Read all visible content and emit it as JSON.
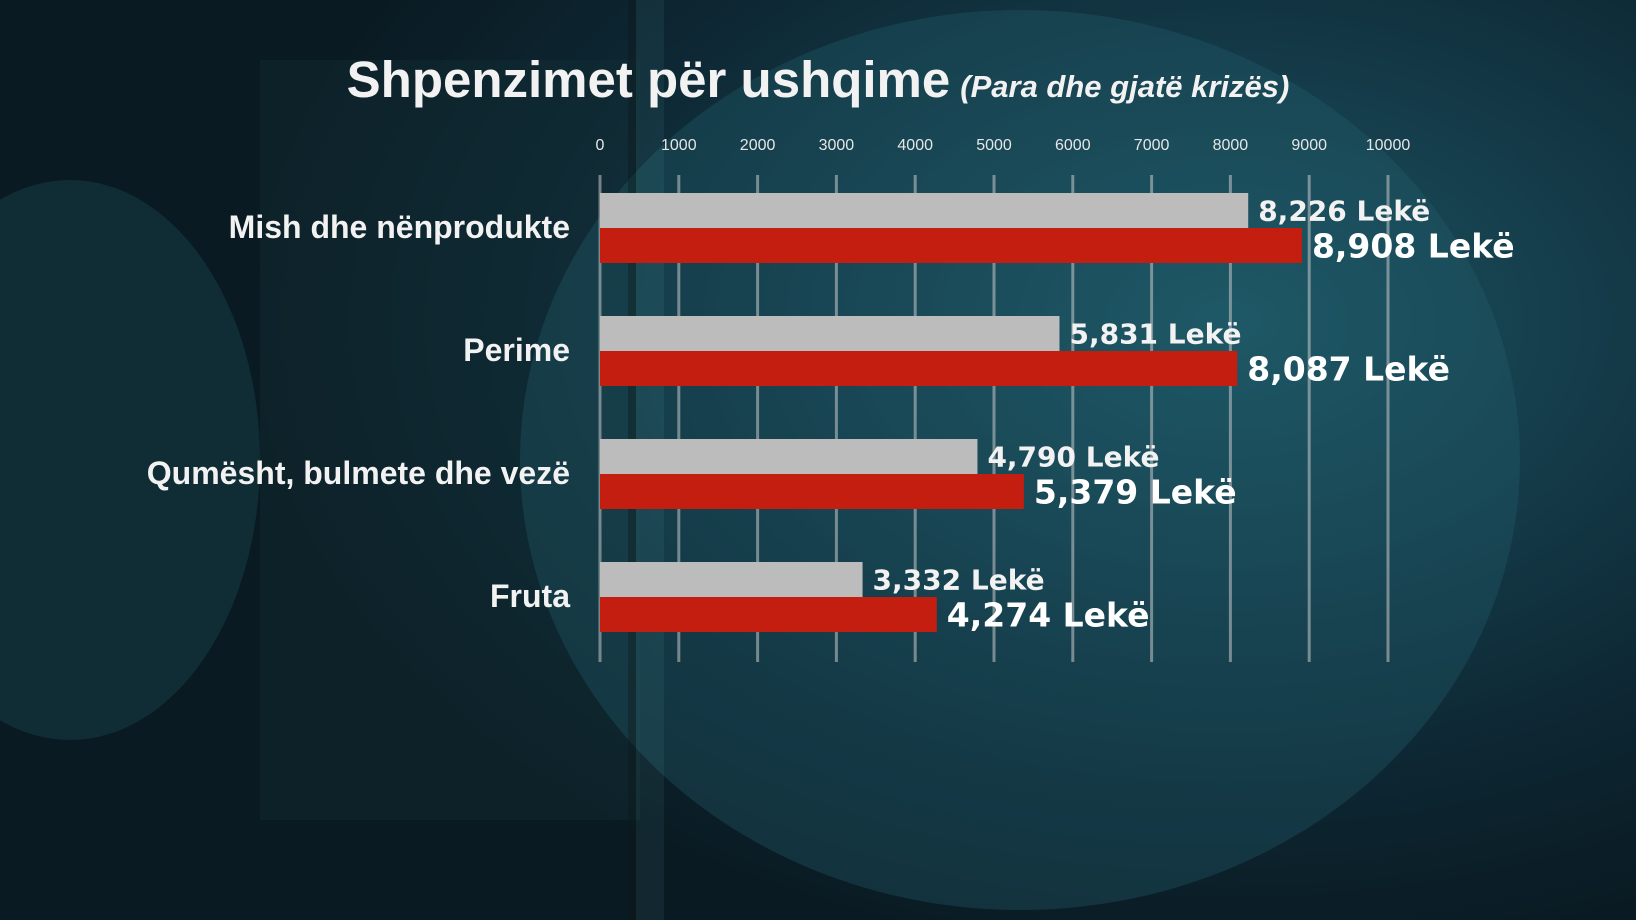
{
  "title": {
    "main": "Shpenzimet për ushqime",
    "sub": "(Para dhe gjatë krizës)"
  },
  "chart_data": {
    "type": "bar",
    "orientation": "horizontal",
    "title": "Shpenzimet për ushqime",
    "subtitle": "(Para dhe gjatë krizës)",
    "categories": [
      "Mish dhe nënprodukte",
      "Perime",
      "Qumësht, bulmete dhe vezë",
      "Fruta"
    ],
    "series": [
      {
        "color": "#bcbcbc",
        "values": [
          8226,
          5831,
          4790,
          3332
        ],
        "value_labels": [
          "8,226 Lekë",
          "5,831 Lekë",
          "4,790 Lekë",
          "3,332 Lekë"
        ]
      },
      {
        "color": "#c41e10",
        "values": [
          8908,
          8087,
          5379,
          4274
        ],
        "value_labels": [
          "8,908 Lekë",
          "8,087 Lekë",
          "5,379 Lekë",
          "4,274 Lekë"
        ]
      }
    ],
    "x_ticks": [
      0,
      1000,
      2000,
      3000,
      4000,
      5000,
      6000,
      7000,
      8000,
      9000,
      10000
    ],
    "xlim": [
      0,
      10000
    ],
    "grid": true,
    "axis_position": "top"
  }
}
